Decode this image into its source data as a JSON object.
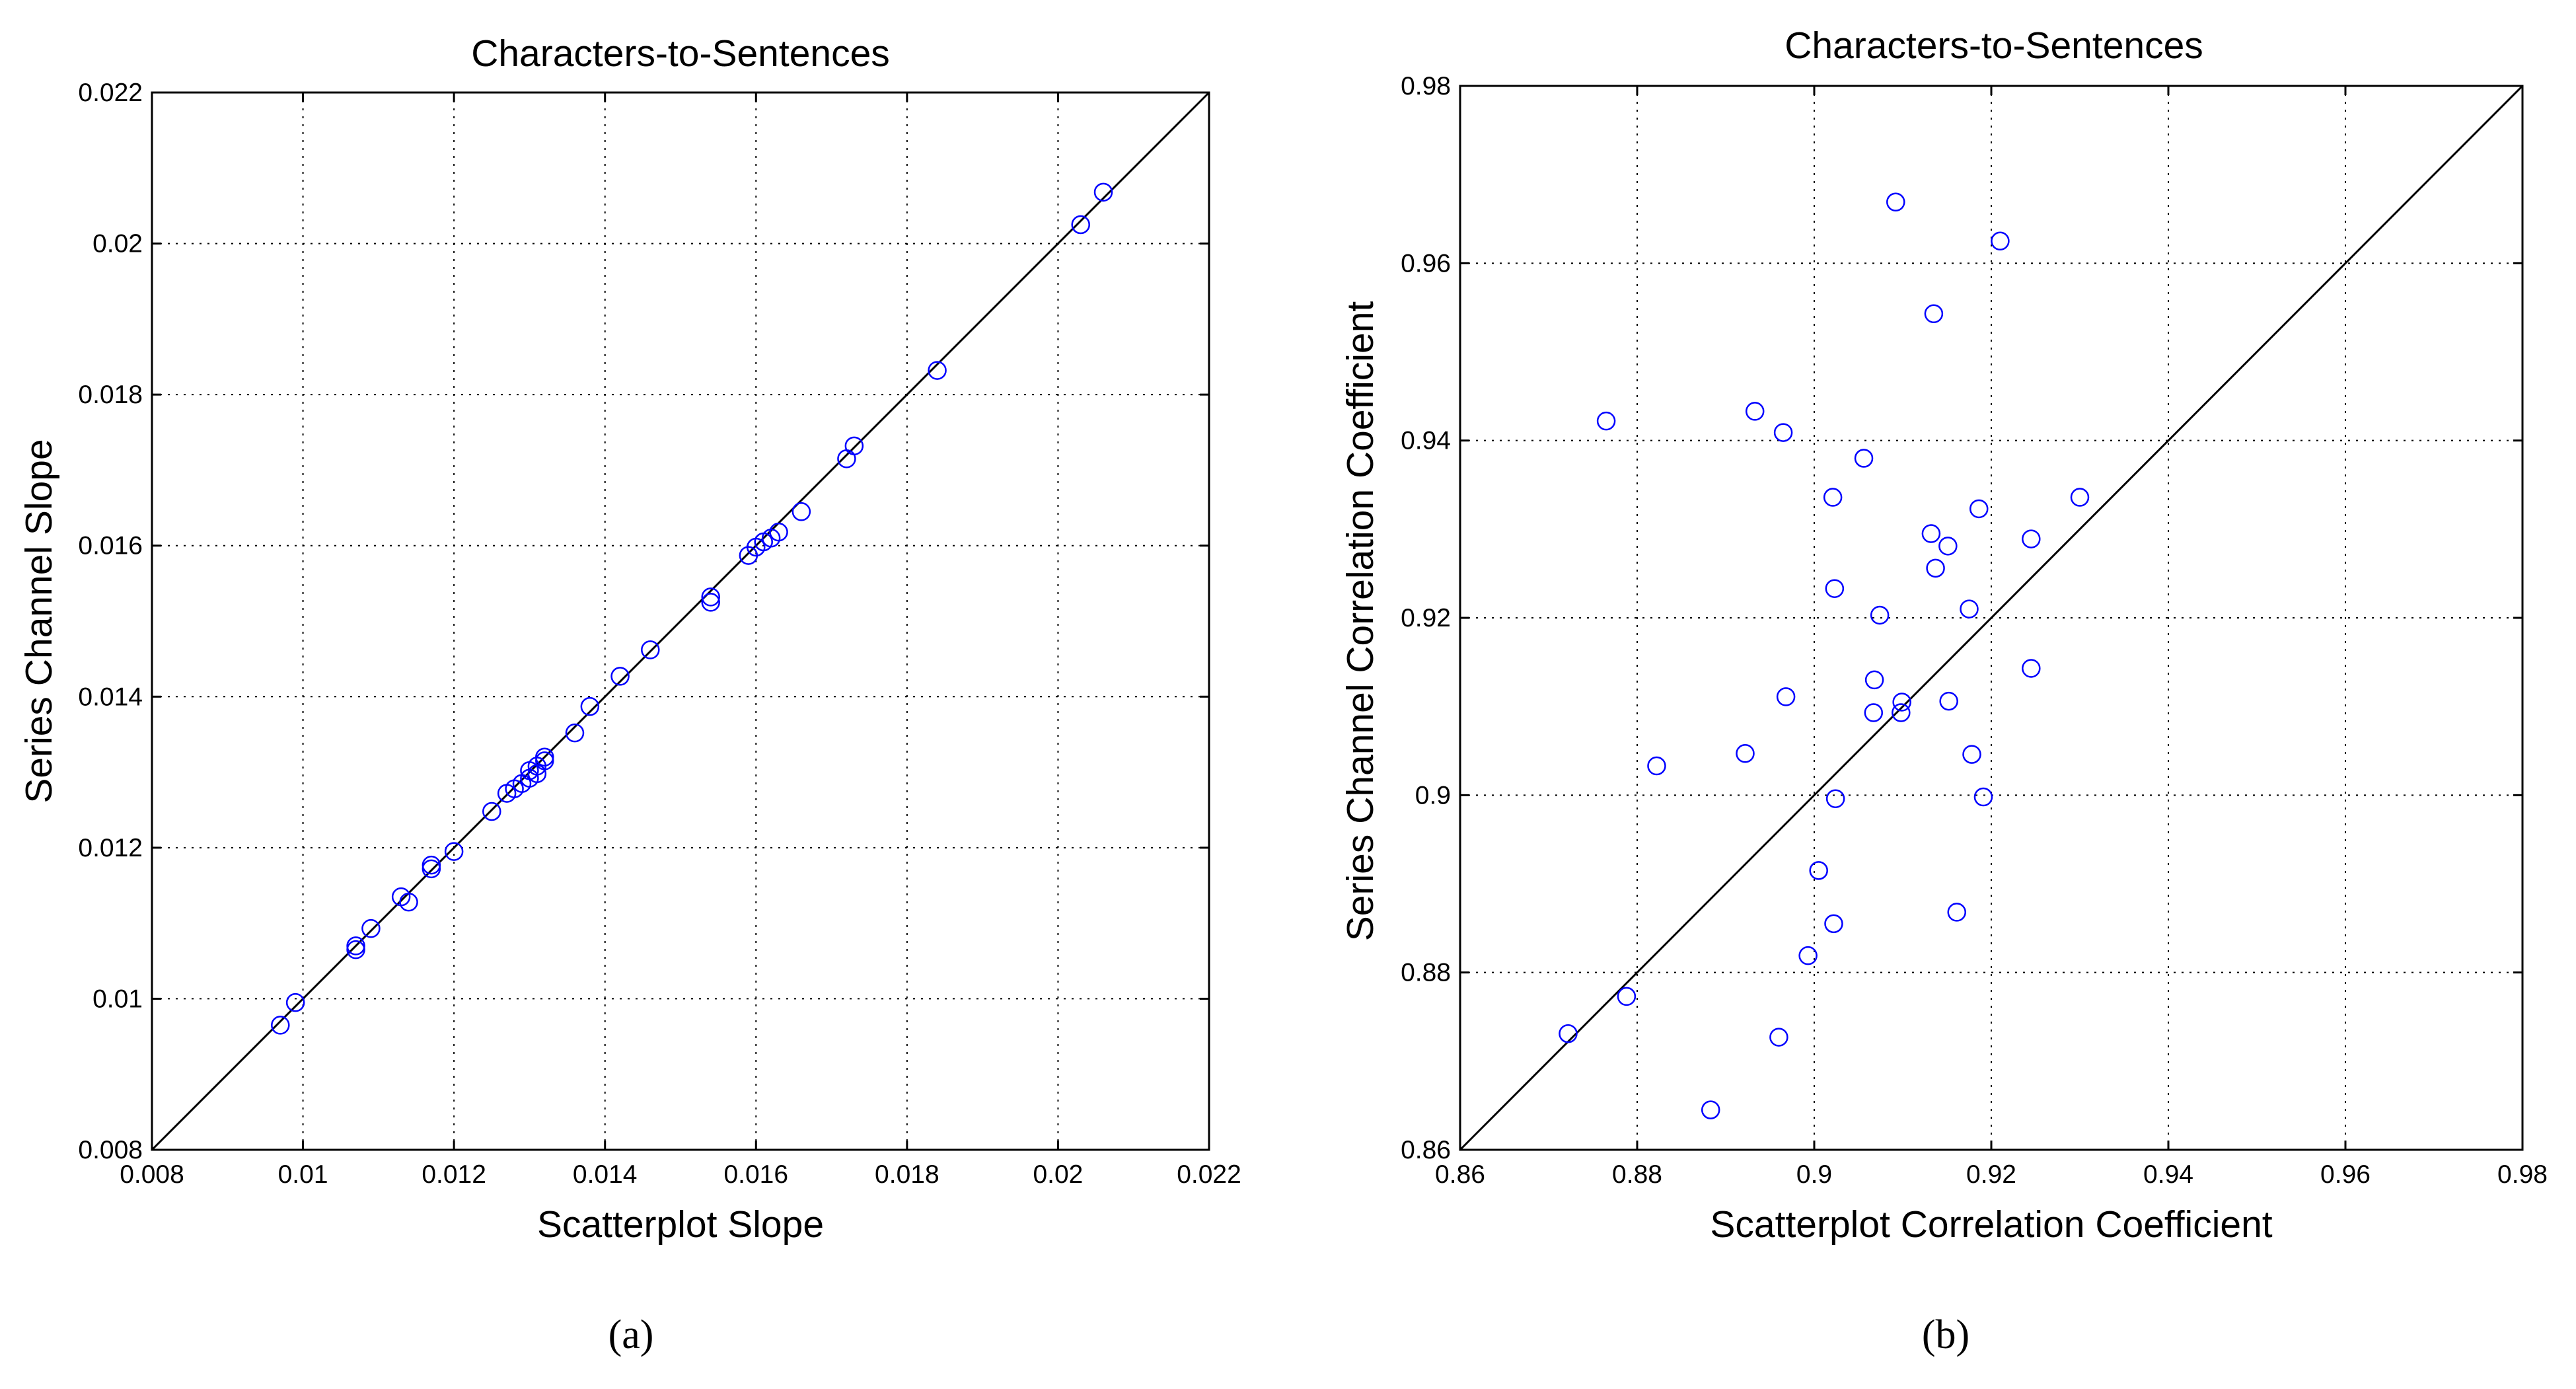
{
  "chart_data": [
    {
      "type": "scatter",
      "panel_label": "(a)",
      "title": "Characters-to-Sentences",
      "xlabel": "Scatterplot Slope",
      "ylabel": "Series Channel Slope",
      "xlim": [
        0.008,
        0.022
      ],
      "ylim": [
        0.008,
        0.022
      ],
      "xticks": [
        "0.008",
        "0.01",
        "0.012",
        "0.014",
        "0.016",
        "0.018",
        "0.02",
        "0.022"
      ],
      "yticks": [
        "0.008",
        "0.01",
        "0.012",
        "0.014",
        "0.016",
        "0.018",
        "0.02",
        "0.022"
      ],
      "grid": true,
      "reference_line": "y = x",
      "marker": "circle",
      "color": "#0000ff",
      "points": [
        [
          0.0097,
          0.00965
        ],
        [
          0.0099,
          0.00995
        ],
        [
          0.0107,
          0.01065
        ],
        [
          0.0107,
          0.0107
        ],
        [
          0.0109,
          0.01093
        ],
        [
          0.0113,
          0.01135
        ],
        [
          0.0114,
          0.01128
        ],
        [
          0.0117,
          0.01172
        ],
        [
          0.0117,
          0.01177
        ],
        [
          0.012,
          0.01195
        ],
        [
          0.0125,
          0.01248
        ],
        [
          0.0127,
          0.01272
        ],
        [
          0.0128,
          0.01278
        ],
        [
          0.0129,
          0.01285
        ],
        [
          0.013,
          0.01292
        ],
        [
          0.013,
          0.01302
        ],
        [
          0.0131,
          0.01298
        ],
        [
          0.0131,
          0.01308
        ],
        [
          0.0132,
          0.01315
        ],
        [
          0.0132,
          0.0132
        ],
        [
          0.0136,
          0.01352
        ],
        [
          0.0138,
          0.01387
        ],
        [
          0.0142,
          0.01427
        ],
        [
          0.0146,
          0.01462
        ],
        [
          0.0154,
          0.01525
        ],
        [
          0.0154,
          0.01532
        ],
        [
          0.0159,
          0.01587
        ],
        [
          0.016,
          0.01598
        ],
        [
          0.0161,
          0.01605
        ],
        [
          0.0162,
          0.0161
        ],
        [
          0.0163,
          0.01618
        ],
        [
          0.0166,
          0.01645
        ],
        [
          0.0172,
          0.01715
        ],
        [
          0.0173,
          0.01732
        ],
        [
          0.0184,
          0.01832
        ],
        [
          0.0203,
          0.02025
        ],
        [
          0.0206,
          0.02068
        ]
      ]
    },
    {
      "type": "scatter",
      "panel_label": "(b)",
      "title": "Characters-to-Sentences",
      "xlabel": "Scatterplot Correlation Coefficient",
      "ylabel": "Series Channel Correlation Coefficient",
      "xlim": [
        0.86,
        0.98
      ],
      "ylim": [
        0.86,
        0.98
      ],
      "xticks": [
        "0.86",
        "0.88",
        "0.9",
        "0.92",
        "0.94",
        "0.96",
        "0.98"
      ],
      "yticks": [
        "0.86",
        "0.88",
        "0.9",
        "0.92",
        "0.94",
        "0.96",
        "0.98"
      ],
      "grid": true,
      "reference_line": "y = x",
      "marker": "circle",
      "color": "#0000ff",
      "points": [
        [
          0.8722,
          0.8731
        ],
        [
          0.8765,
          0.9422
        ],
        [
          0.8788,
          0.8773
        ],
        [
          0.8822,
          0.9033
        ],
        [
          0.8883,
          0.8645
        ],
        [
          0.8922,
          0.9047
        ],
        [
          0.8933,
          0.9433
        ],
        [
          0.896,
          0.8727
        ],
        [
          0.8965,
          0.9409
        ],
        [
          0.8968,
          0.9111
        ],
        [
          0.8993,
          0.8819
        ],
        [
          0.9005,
          0.8915
        ],
        [
          0.9021,
          0.9336
        ],
        [
          0.9022,
          0.8855
        ],
        [
          0.9023,
          0.9233
        ],
        [
          0.9024,
          0.8996
        ],
        [
          0.9056,
          0.938
        ],
        [
          0.9067,
          0.9093
        ],
        [
          0.9068,
          0.913
        ],
        [
          0.9074,
          0.9203
        ],
        [
          0.9092,
          0.9669
        ],
        [
          0.9098,
          0.9093
        ],
        [
          0.9099,
          0.9105
        ],
        [
          0.9132,
          0.9295
        ],
        [
          0.9135,
          0.9543
        ],
        [
          0.9137,
          0.9256
        ],
        [
          0.9151,
          0.9281
        ],
        [
          0.9152,
          0.9106
        ],
        [
          0.9161,
          0.8868
        ],
        [
          0.9175,
          0.921
        ],
        [
          0.9178,
          0.9046
        ],
        [
          0.9186,
          0.9323
        ],
        [
          0.9191,
          0.8998
        ],
        [
          0.921,
          0.9625
        ],
        [
          0.9245,
          0.9289
        ],
        [
          0.9245,
          0.9143
        ],
        [
          0.93,
          0.9336
        ]
      ]
    }
  ]
}
